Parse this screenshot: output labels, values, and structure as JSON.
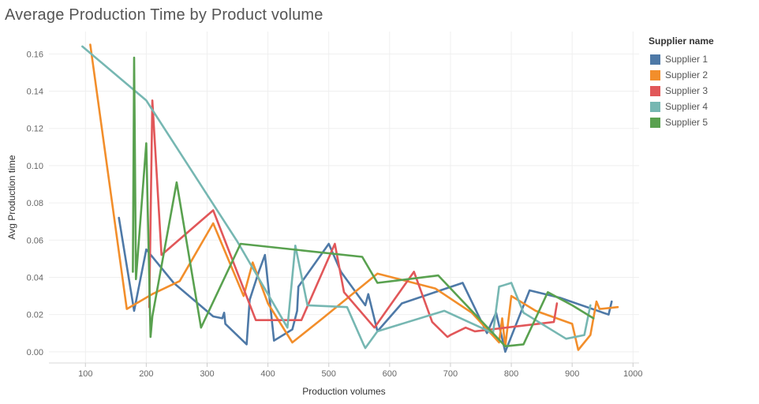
{
  "title": "Average Production Time by Product volume",
  "chart_data": {
    "type": "line",
    "title": "Average Production Time by Product volume",
    "xlabel": "Production volumes",
    "ylabel": "Avg Production time",
    "xlim": [
      40,
      1010
    ],
    "ylim": [
      -0.006,
      0.172
    ],
    "xticks": [
      100,
      200,
      300,
      400,
      500,
      600,
      700,
      800,
      900,
      1000
    ],
    "yticks": [
      0.0,
      0.02,
      0.04,
      0.06,
      0.08,
      0.1,
      0.12,
      0.14,
      0.16
    ],
    "ytick_labels": [
      "0.00",
      "0.02",
      "0.04",
      "0.06",
      "0.08",
      "0.10",
      "0.12",
      "0.14",
      "0.16"
    ],
    "grid": true,
    "legend_title": "Supplier name",
    "legend_position": "right",
    "series": [
      {
        "name": "Supplier 1",
        "color": "#4e79a7",
        "x": [
          155,
          180,
          200,
          245,
          310,
          325,
          328,
          330,
          365,
          370,
          385,
          395,
          410,
          440,
          448,
          450,
          500,
          520,
          560,
          565,
          580,
          620,
          720,
          760,
          775,
          790,
          830,
          880,
          960,
          965
        ],
        "y": [
          0.072,
          0.022,
          0.055,
          0.037,
          0.019,
          0.018,
          0.021,
          0.015,
          0.004,
          0.028,
          0.043,
          0.052,
          0.006,
          0.012,
          0.022,
          0.035,
          0.058,
          0.043,
          0.025,
          0.031,
          0.011,
          0.026,
          0.037,
          0.01,
          0.021,
          0.0,
          0.033,
          0.029,
          0.02,
          0.027
        ]
      },
      {
        "name": "Supplier 2",
        "color": "#f28e2b",
        "x": [
          108,
          168,
          210,
          255,
          310,
          360,
          375,
          400,
          440,
          490,
          580,
          675,
          735,
          780,
          785,
          790,
          800,
          840,
          900,
          910,
          930,
          940,
          945,
          975
        ],
        "y": [
          0.165,
          0.023,
          0.031,
          0.038,
          0.069,
          0.03,
          0.048,
          0.026,
          0.005,
          0.018,
          0.042,
          0.034,
          0.021,
          0.005,
          0.018,
          0.003,
          0.03,
          0.022,
          0.015,
          0.001,
          0.009,
          0.027,
          0.023,
          0.024
        ]
      },
      {
        "name": "Supplier 3",
        "color": "#e15759",
        "x": [
          205,
          210,
          225,
          310,
          380,
          430,
          455,
          510,
          525,
          575,
          640,
          670,
          695,
          700,
          725,
          740,
          870,
          875
        ],
        "y": [
          0.024,
          0.135,
          0.052,
          0.076,
          0.017,
          0.017,
          0.017,
          0.058,
          0.032,
          0.013,
          0.043,
          0.016,
          0.008,
          0.009,
          0.013,
          0.011,
          0.016,
          0.026
        ]
      },
      {
        "name": "Supplier 4",
        "color": "#76b7b2",
        "x": [
          95,
          200,
          350,
          432,
          445,
          465,
          530,
          557,
          560,
          580,
          690,
          770,
          780,
          800,
          820,
          890,
          920,
          930
        ],
        "y": [
          0.164,
          0.135,
          0.059,
          0.013,
          0.057,
          0.025,
          0.024,
          0.004,
          0.002,
          0.011,
          0.022,
          0.01,
          0.035,
          0.037,
          0.021,
          0.007,
          0.009,
          0.025
        ]
      },
      {
        "name": "Supplier 5",
        "color": "#59a14f",
        "x": [
          178,
          180,
          183,
          200,
          207,
          210,
          250,
          290,
          355,
          555,
          580,
          680,
          790,
          820,
          860,
          900,
          935
        ],
        "y": [
          0.043,
          0.158,
          0.039,
          0.112,
          0.008,
          0.019,
          0.091,
          0.013,
          0.058,
          0.051,
          0.037,
          0.041,
          0.003,
          0.004,
          0.032,
          0.025,
          0.018
        ]
      }
    ]
  }
}
